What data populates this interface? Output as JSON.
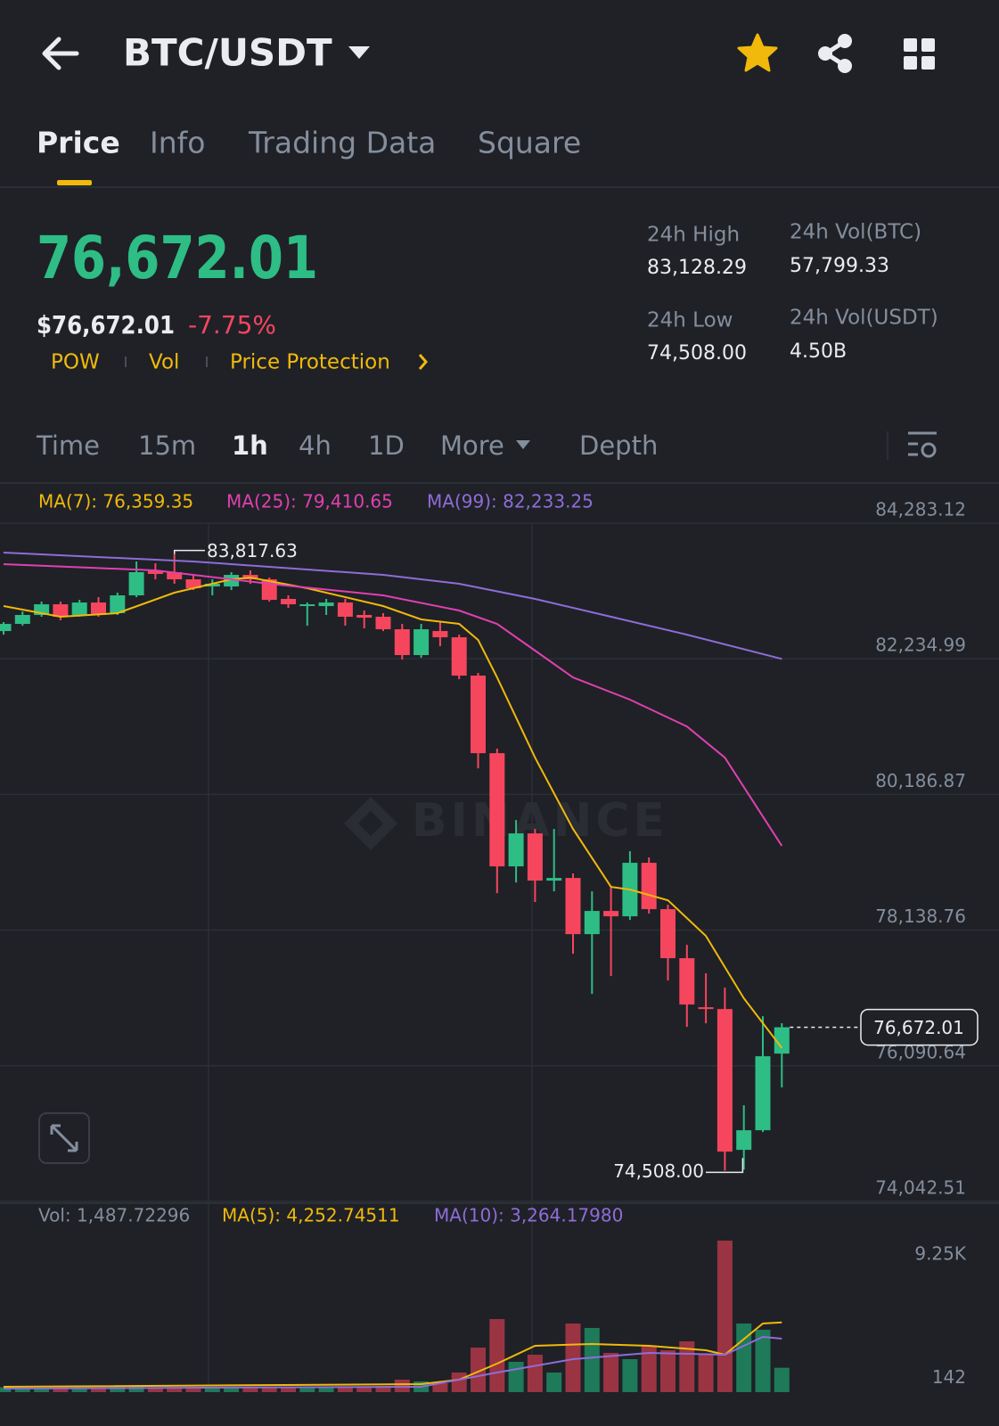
{
  "header": {
    "title": "BTC/USDT"
  },
  "tabs": [
    "Price",
    "Info",
    "Trading Data",
    "Square"
  ],
  "price": {
    "last": "76,672.01",
    "usd": "$76,672.01",
    "change": "-7.75%",
    "tags": [
      "POW",
      "Vol",
      "Price Protection"
    ]
  },
  "stats": [
    {
      "label": "24h High",
      "value": "83,128.29"
    },
    {
      "label": "24h Vol(BTC)",
      "value": "57,799.33"
    },
    {
      "label": "24h Low",
      "value": "74,508.00"
    },
    {
      "label": "24h Vol(USDT)",
      "value": "4.50B"
    }
  ],
  "intervals": [
    "Time",
    "15m",
    "1h",
    "4h",
    "1D",
    "More",
    "Depth"
  ],
  "chart_data": [
    {
      "type": "candlestick",
      "watermark": "BINANCE",
      "up_color": "#2ebd85",
      "down_color": "#f6465d",
      "ylim": [
        74042.51,
        84848
      ],
      "yticks": [
        {
          "value": 84283.12,
          "label": "84,283.12"
        },
        {
          "value": 82234.99,
          "label": "82,234.99"
        },
        {
          "value": 80186.87,
          "label": "80,186.87"
        },
        {
          "value": 78138.76,
          "label": "78,138.76"
        },
        {
          "value": 76090.64,
          "label": "76,090.64"
        },
        {
          "value": 74042.51,
          "label": "74,042.51"
        }
      ],
      "grid": true,
      "candles": {
        "open": [
          82654,
          82762,
          82897,
          83058,
          82897,
          83085,
          82924,
          83193,
          83570,
          83543,
          83435,
          83327,
          83327,
          83502,
          83435,
          83139,
          83031,
          83031,
          83085,
          82897,
          82870,
          82681,
          82291,
          82654,
          82560,
          81981,
          80810,
          79101,
          79599,
          78886,
          78926,
          78078,
          78428,
          78347,
          79155,
          78455,
          77715,
          76974,
          76947,
          74821,
          75117,
          76274
        ],
        "high": [
          82789,
          82950,
          83099,
          83099,
          83125,
          83166,
          83233,
          83704,
          83677,
          83817.63,
          83502,
          83435,
          83543,
          83570,
          83462,
          83193,
          83085,
          83139,
          83139,
          82964,
          82924,
          82762,
          82762,
          82789,
          82600,
          82022,
          80878,
          79801,
          79666,
          79666,
          78993,
          78724,
          78791,
          79330,
          79235,
          78522,
          77916,
          77486,
          77270,
          75494,
          76840,
          76732
        ],
        "low": [
          82600,
          82735,
          82870,
          82816,
          82870,
          82870,
          82897,
          83166,
          83435,
          83368,
          83273,
          83193,
          83273,
          83368,
          83099,
          83004,
          82735,
          82897,
          82735,
          82695,
          82654,
          82224,
          82251,
          82426,
          81927,
          80581,
          78697,
          78859,
          78562,
          78724,
          77782,
          77176,
          77445,
          78293,
          78388,
          77378,
          76678,
          76732,
          74508.0,
          74524,
          75090,
          75763
        ],
        "close": [
          82762,
          82897,
          83058,
          82870,
          83085,
          82897,
          83193,
          83543,
          83516,
          83435,
          83300,
          83368,
          83502,
          83435,
          83125,
          83058,
          83058,
          83085,
          82870,
          82856,
          82681,
          82291,
          82681,
          82560,
          81981,
          80810,
          79101,
          79599,
          78886,
          78926,
          78078,
          78428,
          78347,
          79155,
          78455,
          77715,
          77015,
          76947,
          74794,
          75117,
          76234,
          76672.01
        ]
      },
      "lines": [
        {
          "legend": "MA(7): 76,359.35",
          "color": "#f0b90b",
          "x": [
            0,
            3,
            6,
            9,
            12,
            13,
            16,
            20,
            22,
            24,
            25,
            26,
            28,
            30,
            32,
            33,
            35,
            37,
            39,
            41
          ],
          "values": [
            83031,
            82870,
            82924,
            83233,
            83435,
            83462,
            83300,
            83031,
            82829,
            82762,
            82520,
            81954,
            80743,
            79666,
            78791,
            78751,
            78590,
            78051,
            77109,
            76359.35
          ]
        },
        {
          "legend": "MA(25): 79,410.65",
          "color": "#e040b0",
          "x": [
            0,
            8,
            14,
            20,
            24,
            26,
            28,
            30,
            33,
            36,
            38,
            41
          ],
          "values": [
            83664,
            83570,
            83368,
            83193,
            82964,
            82762,
            82358,
            81954,
            81618,
            81214,
            80743,
            79410.65
          ]
        },
        {
          "legend": "MA(99): 82,233.25",
          "color": "#8f6cd8",
          "x": [
            0,
            10,
            20,
            24,
            28,
            32,
            36,
            41
          ],
          "values": [
            83839,
            83704,
            83502,
            83368,
            83139,
            82870,
            82600,
            82233.25
          ]
        }
      ],
      "high_label": "83,817.63",
      "low_label": "74,508.00",
      "last_label": "76,672.01"
    },
    {
      "type": "bar",
      "legend": "Vol: 1,487.72296",
      "values": [
        300,
        250,
        200,
        280,
        220,
        260,
        350,
        400,
        300,
        250,
        280,
        230,
        300,
        260,
        310,
        270,
        240,
        290,
        330,
        310,
        380,
        762,
        653,
        544,
        1197,
        2720,
        4461,
        1850,
        2285,
        1197,
        4189,
        3917,
        2394,
        2013,
        2829,
        2557,
        3101,
        2285,
        9250,
        4189,
        3808,
        1487.72296
      ],
      "ylim": [
        0,
        11426
      ],
      "yticks": [
        {
          "value": 9250,
          "label": "9.25K"
        },
        142
      ],
      "lines": [
        {
          "legend": "MA(5): 4,252.74511",
          "color": "#f0b90b",
          "x": [
            0,
            22,
            24,
            26,
            28,
            31,
            34,
            37,
            38,
            40,
            41
          ],
          "values": [
            326,
            490,
            762,
            1741,
            2829,
            2938,
            2829,
            2557,
            2285,
            4189,
            4252.74511
          ]
        },
        {
          "legend": "MA(10): 3,264.17980",
          "color": "#8f6cd8",
          "x": [
            0,
            22,
            26,
            30,
            34,
            38,
            40,
            41
          ],
          "values": [
            218,
            326,
            1197,
            2013,
            2394,
            2285,
            3373,
            3264.1798
          ]
        }
      ]
    }
  ]
}
